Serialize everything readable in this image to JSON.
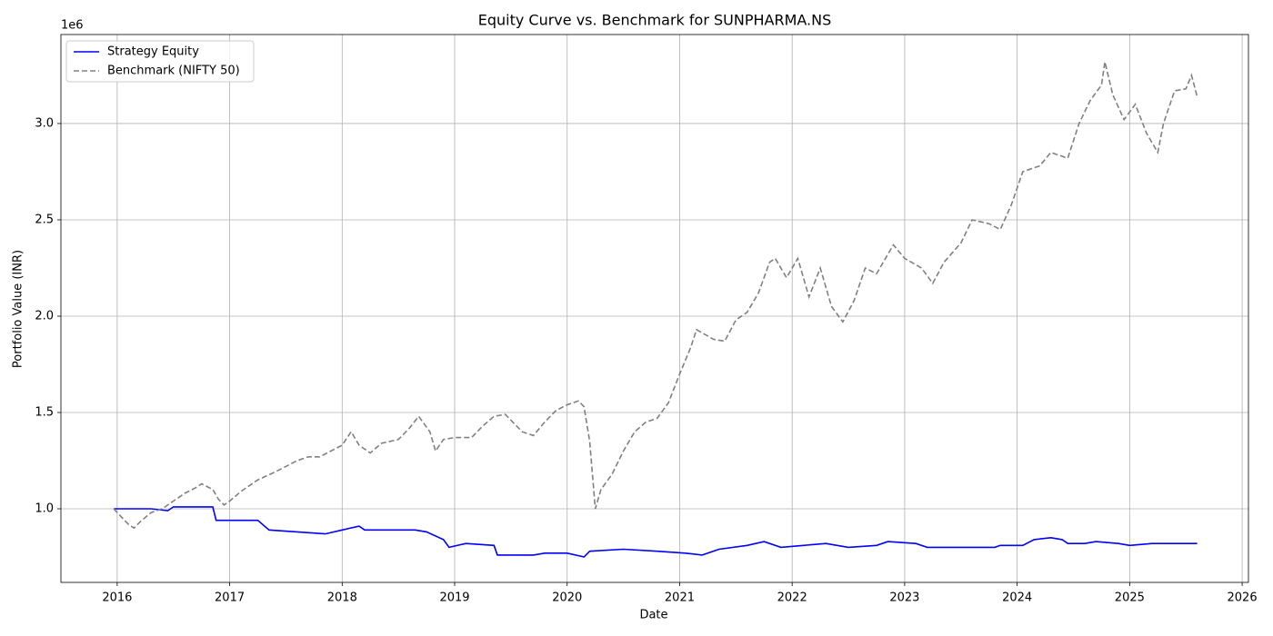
{
  "chart_data": {
    "type": "line",
    "title": "Equity Curve vs. Benchmark for SUNPHARMA.NS",
    "x_label": "Date",
    "y_label": "Portfolio Value (INR)",
    "y_offset_label": "1e6",
    "xlim": [
      2015.5,
      2026.056
    ],
    "xticks": [
      2016,
      2017,
      2018,
      2019,
      2020,
      2021,
      2022,
      2023,
      2024,
      2025,
      2026
    ],
    "ylim": [
      0.618,
      3.462
    ],
    "yticks": [
      {
        "value": 1.0,
        "label": "1.0"
      },
      {
        "value": 1.5,
        "label": "1.5"
      },
      {
        "value": 2.0,
        "label": "2.0"
      },
      {
        "value": 2.5,
        "label": "2.5"
      },
      {
        "value": 3.0,
        "label": "3.0"
      }
    ],
    "grid": true,
    "legend": "upper left",
    "series": [
      {
        "name": "Strategy Equity",
        "color": "#0000ff",
        "dash": "solid",
        "x": [
          2015.97,
          2016.3,
          2016.45,
          2016.5,
          2016.85,
          2016.88,
          2017.25,
          2017.35,
          2017.6,
          2017.85,
          2018.0,
          2018.15,
          2018.2,
          2018.65,
          2018.75,
          2018.9,
          2018.95,
          2019.1,
          2019.35,
          2019.38,
          2019.7,
          2019.8,
          2020.0,
          2020.15,
          2020.2,
          2020.5,
          2020.8,
          2021.05,
          2021.2,
          2021.35,
          2021.6,
          2021.75,
          2021.9,
          2022.1,
          2022.3,
          2022.5,
          2022.75,
          2022.85,
          2023.1,
          2023.2,
          2023.8,
          2023.85,
          2024.05,
          2024.15,
          2024.3,
          2024.4,
          2024.45,
          2024.6,
          2024.7,
          2024.9,
          2025.0,
          2025.2,
          2025.4,
          2025.5,
          2025.6
        ],
        "values": [
          1.0,
          1.0,
          0.99,
          1.01,
          1.01,
          0.94,
          0.94,
          0.89,
          0.88,
          0.87,
          0.89,
          0.91,
          0.89,
          0.89,
          0.88,
          0.84,
          0.8,
          0.82,
          0.81,
          0.76,
          0.76,
          0.77,
          0.77,
          0.75,
          0.78,
          0.79,
          0.78,
          0.77,
          0.76,
          0.79,
          0.81,
          0.83,
          0.8,
          0.81,
          0.82,
          0.8,
          0.81,
          0.83,
          0.82,
          0.8,
          0.8,
          0.81,
          0.81,
          0.84,
          0.85,
          0.84,
          0.82,
          0.82,
          0.83,
          0.82,
          0.81,
          0.82,
          0.82,
          0.82,
          0.82
        ]
      },
      {
        "name": "Benchmark (NIFTY 50)",
        "color": "#808080",
        "dash": "dashed",
        "x": [
          2015.97,
          2016.05,
          2016.1,
          2016.15,
          2016.2,
          2016.3,
          2016.4,
          2016.5,
          2016.6,
          2016.7,
          2016.75,
          2016.85,
          2016.9,
          2016.95,
          2017.0,
          2017.1,
          2017.25,
          2017.4,
          2017.5,
          2017.6,
          2017.7,
          2017.8,
          2017.9,
          2018.0,
          2018.08,
          2018.15,
          2018.25,
          2018.35,
          2018.5,
          2018.6,
          2018.68,
          2018.78,
          2018.83,
          2018.9,
          2019.0,
          2019.15,
          2019.25,
          2019.35,
          2019.45,
          2019.5,
          2019.6,
          2019.7,
          2019.8,
          2019.9,
          2020.0,
          2020.1,
          2020.15,
          2020.2,
          2020.25,
          2020.3,
          2020.4,
          2020.5,
          2020.6,
          2020.7,
          2020.8,
          2020.9,
          2021.0,
          2021.1,
          2021.15,
          2021.3,
          2021.4,
          2021.5,
          2021.6,
          2021.7,
          2021.8,
          2021.85,
          2021.95,
          2022.05,
          2022.15,
          2022.25,
          2022.35,
          2022.45,
          2022.55,
          2022.65,
          2022.75,
          2022.9,
          2023.0,
          2023.15,
          2023.25,
          2023.35,
          2023.5,
          2023.6,
          2023.75,
          2023.85,
          2023.95,
          2024.05,
          2024.2,
          2024.3,
          2024.45,
          2024.55,
          2024.65,
          2024.75,
          2024.78,
          2024.85,
          2024.95,
          2025.05,
          2025.15,
          2025.25,
          2025.3,
          2025.4,
          2025.5,
          2025.55,
          2025.6
        ],
        "values": [
          1.0,
          0.95,
          0.92,
          0.9,
          0.93,
          0.98,
          1.0,
          1.04,
          1.08,
          1.11,
          1.13,
          1.1,
          1.05,
          1.02,
          1.04,
          1.09,
          1.15,
          1.19,
          1.22,
          1.25,
          1.27,
          1.27,
          1.3,
          1.33,
          1.4,
          1.33,
          1.29,
          1.34,
          1.36,
          1.42,
          1.48,
          1.4,
          1.3,
          1.36,
          1.37,
          1.37,
          1.43,
          1.48,
          1.49,
          1.46,
          1.4,
          1.38,
          1.45,
          1.51,
          1.54,
          1.56,
          1.53,
          1.35,
          1.0,
          1.1,
          1.18,
          1.3,
          1.4,
          1.45,
          1.47,
          1.55,
          1.7,
          1.84,
          1.93,
          1.88,
          1.87,
          1.98,
          2.02,
          2.12,
          2.28,
          2.3,
          2.2,
          2.3,
          2.1,
          2.25,
          2.05,
          1.97,
          2.08,
          2.25,
          2.22,
          2.37,
          2.3,
          2.25,
          2.17,
          2.28,
          2.38,
          2.5,
          2.48,
          2.45,
          2.58,
          2.75,
          2.78,
          2.85,
          2.82,
          3.0,
          3.12,
          3.2,
          3.32,
          3.15,
          3.02,
          3.1,
          2.95,
          2.85,
          3.0,
          3.17,
          3.18,
          3.25,
          3.14
        ]
      }
    ]
  }
}
